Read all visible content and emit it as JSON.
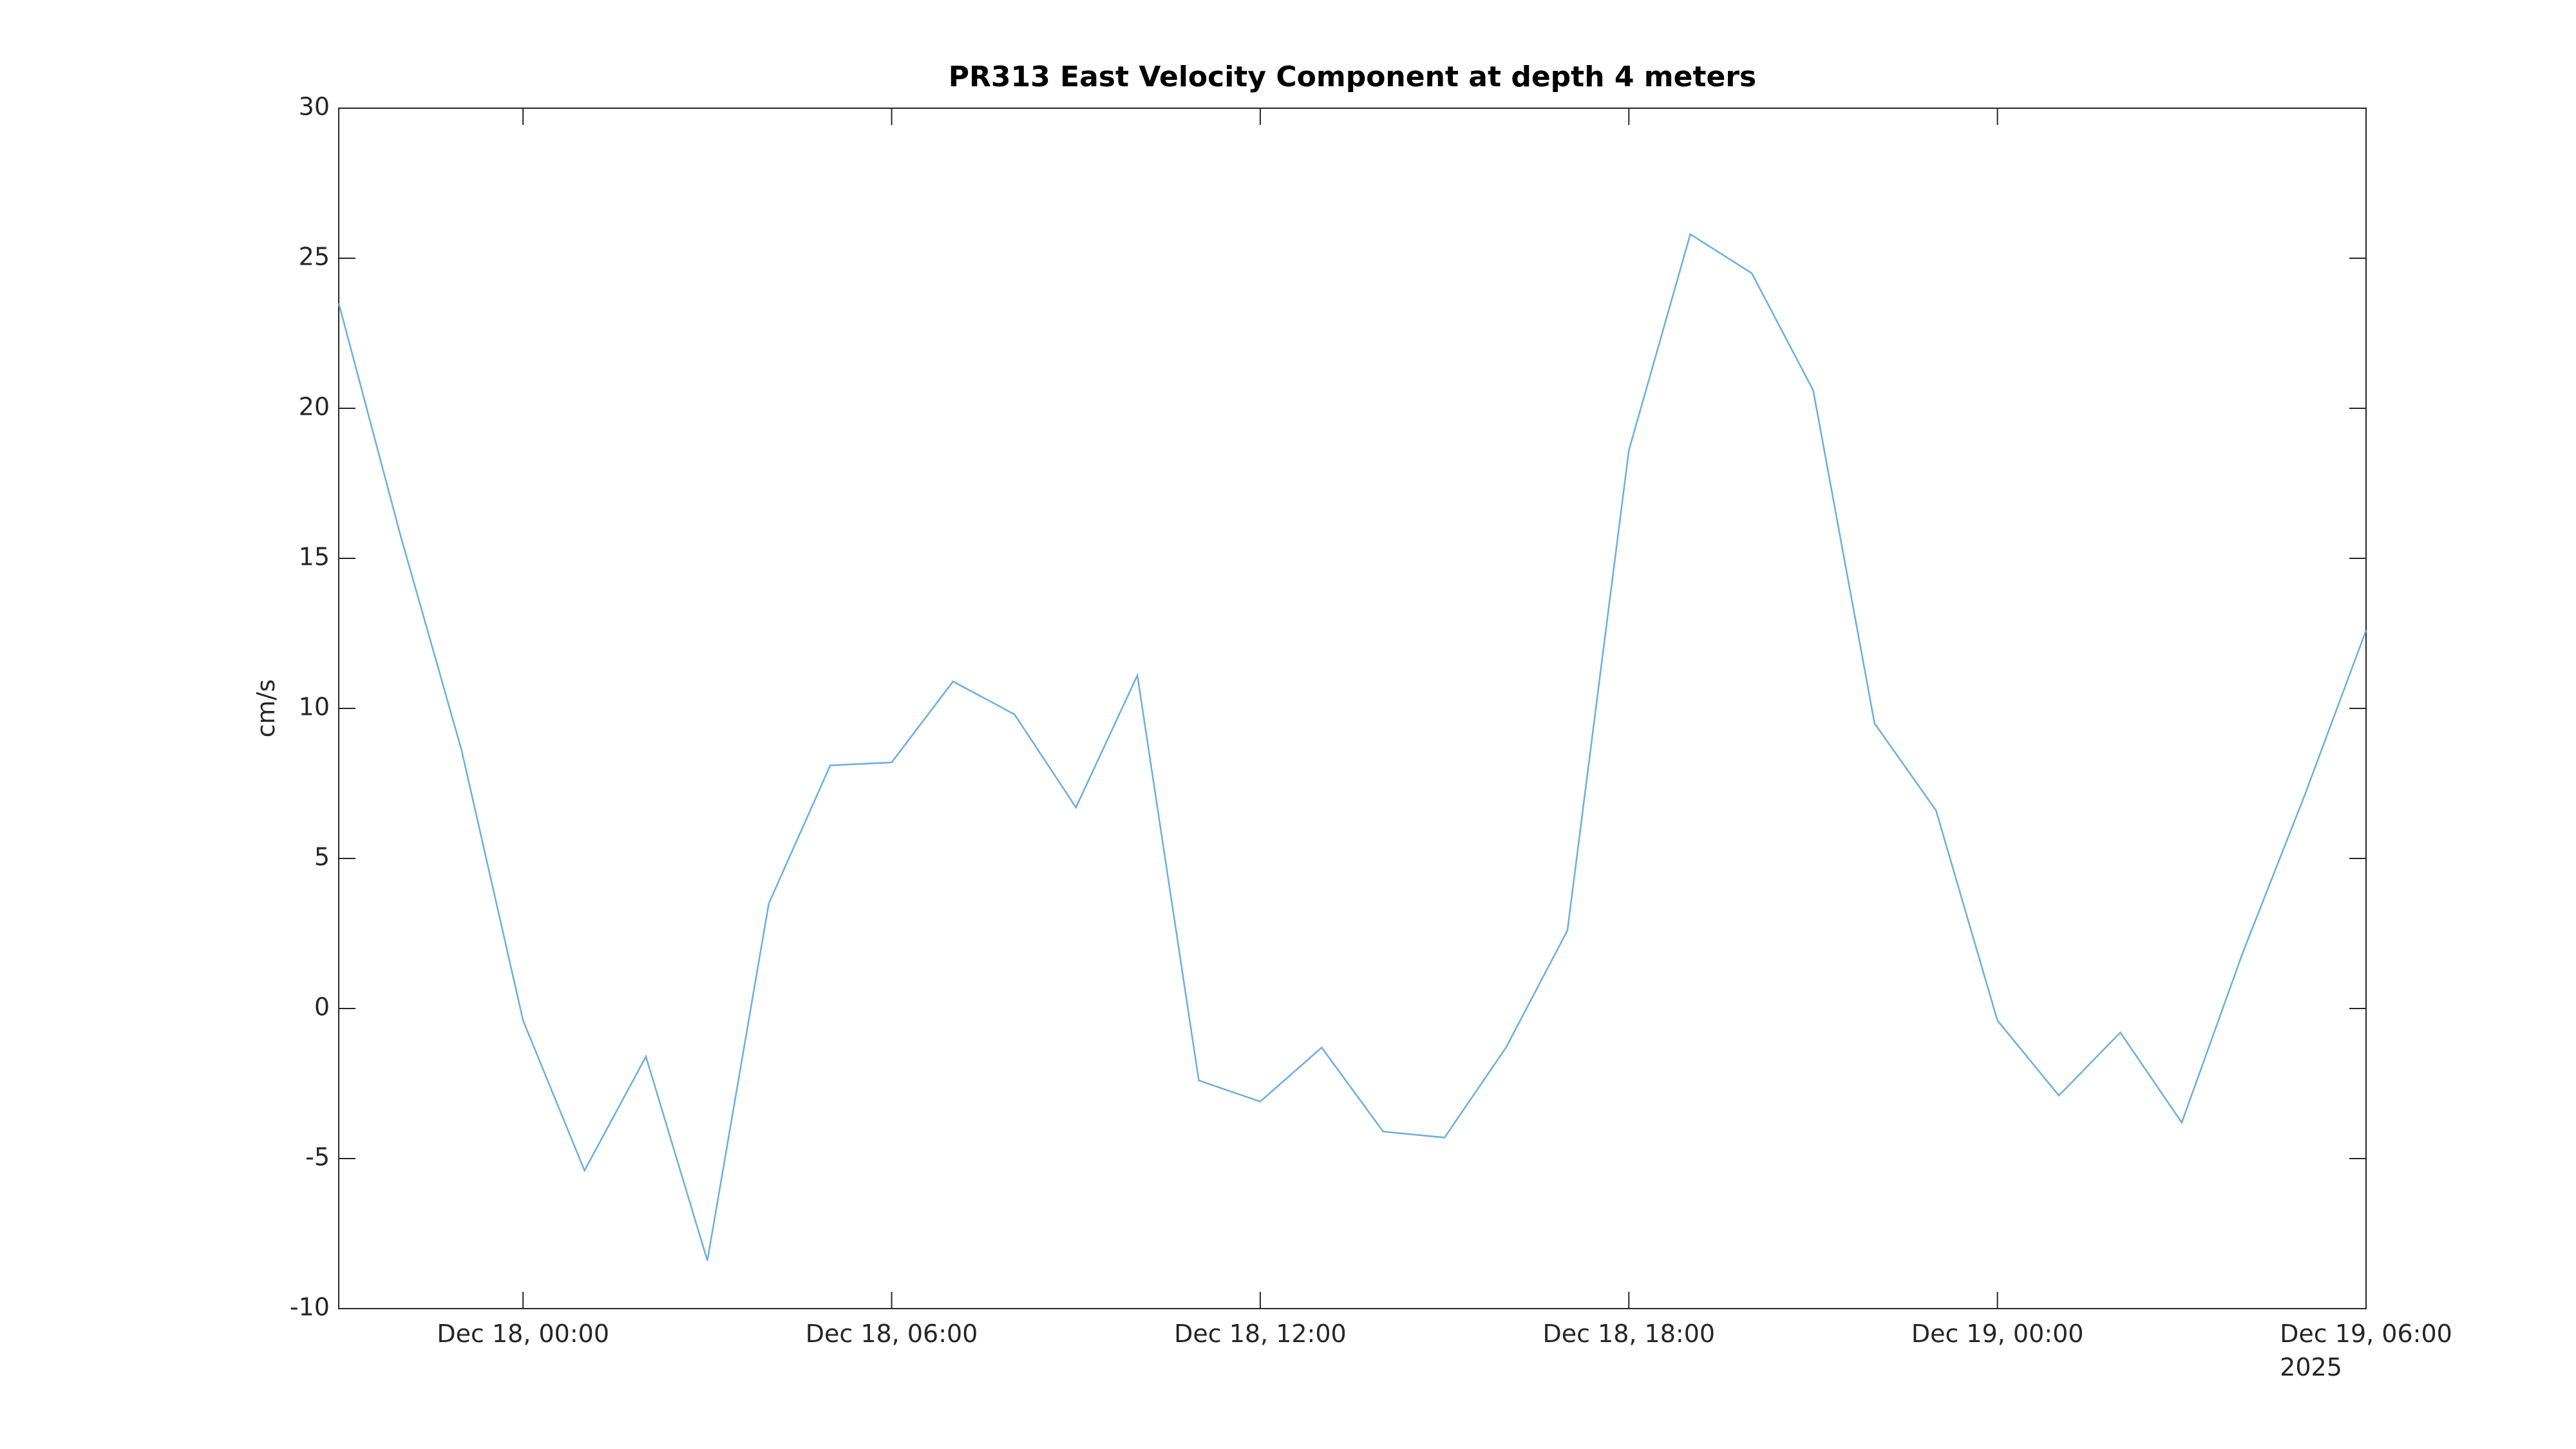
{
  "chart_data": {
    "type": "line",
    "title": "PR313 East Velocity Component at depth 4 meters",
    "y_label": "cm/s",
    "x": [
      "2025-12-17T21:00",
      "2025-12-17T22:00",
      "2025-12-17T23:00",
      "2025-12-18T00:00",
      "2025-12-18T01:00",
      "2025-12-18T02:00",
      "2025-12-18T03:00",
      "2025-12-18T04:00",
      "2025-12-18T05:00",
      "2025-12-18T06:00",
      "2025-12-18T07:00",
      "2025-12-18T08:00",
      "2025-12-18T09:00",
      "2025-12-18T10:00",
      "2025-12-18T11:00",
      "2025-12-18T12:00",
      "2025-12-18T13:00",
      "2025-12-18T14:00",
      "2025-12-18T15:00",
      "2025-12-18T16:00",
      "2025-12-18T17:00",
      "2025-12-18T18:00",
      "2025-12-18T19:00",
      "2025-12-18T20:00",
      "2025-12-18T21:00",
      "2025-12-18T22:00",
      "2025-12-18T23:00",
      "2025-12-19T00:00",
      "2025-12-19T01:00",
      "2025-12-19T02:00",
      "2025-12-19T03:00",
      "2025-12-19T04:00",
      "2025-12-19T05:00",
      "2025-12-19T06:00"
    ],
    "series": [
      {
        "color": "#6aaee3",
        "values": [
          23.5,
          15.8,
          8.6,
          -0.4,
          -5.4,
          -1.6,
          -8.4,
          3.5,
          8.1,
          8.2,
          10.9,
          9.8,
          6.7,
          11.1,
          -2.4,
          -3.1,
          -1.3,
          -4.1,
          -4.3,
          -1.3,
          2.6,
          18.6,
          25.8,
          24.5,
          20.6,
          9.5,
          6.6,
          -0.4,
          -2.9,
          -0.8,
          -3.8,
          1.9,
          7.1,
          12.6
        ]
      }
    ],
    "xlim": [
      "2025-12-17T21:00",
      "2025-12-19T06:00"
    ],
    "xticks": [
      {
        "value": "2025-12-18T00:00",
        "label": "Dec 18, 00:00"
      },
      {
        "value": "2025-12-18T06:00",
        "label": "Dec 18, 06:00"
      },
      {
        "value": "2025-12-18T12:00",
        "label": "Dec 18, 12:00"
      },
      {
        "value": "2025-12-18T18:00",
        "label": "Dec 18, 18:00"
      },
      {
        "value": "2025-12-19T00:00",
        "label": "Dec 19, 00:00"
      },
      {
        "value": "2025-12-19T06:00",
        "label": "Dec 19, 06:00"
      }
    ],
    "x_year_label": "2025",
    "ylim": [
      -10,
      30
    ],
    "yticks": [
      -10,
      -5,
      0,
      5,
      10,
      15,
      20,
      25,
      30
    ],
    "grid": false
  }
}
